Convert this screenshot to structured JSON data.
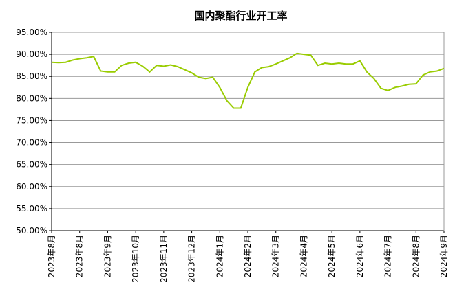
{
  "chart_data": {
    "type": "line",
    "title": "国内聚酯行业开工率",
    "categories": [
      "2023年8月",
      null,
      null,
      null,
      "2023年8月",
      null,
      null,
      null,
      "2023年9月",
      null,
      null,
      null,
      "2023年10月",
      null,
      null,
      null,
      "2023年11月",
      null,
      null,
      null,
      "2023年12月",
      null,
      null,
      null,
      "2024年1月",
      null,
      null,
      null,
      "2024年2月",
      null,
      null,
      null,
      "2024年3月",
      null,
      null,
      null,
      "2024年4月",
      null,
      null,
      null,
      "2024年5月",
      null,
      null,
      null,
      "2024年6月",
      null,
      null,
      null,
      "2024年7月",
      null,
      null,
      null,
      "2024年8月",
      null,
      null,
      null,
      "2024年9月"
    ],
    "series": [
      {
        "color": "#99cc00",
        "values": [
          88.2,
          88.1,
          88.2,
          88.7,
          89.0,
          89.2,
          89.5,
          86.2,
          86.0,
          86.0,
          87.5,
          88.0,
          88.2,
          87.3,
          86.0,
          87.5,
          87.3,
          87.6,
          87.2,
          86.5,
          85.8,
          84.8,
          84.5,
          84.8,
          82.5,
          79.5,
          77.8,
          77.8,
          82.5,
          86.0,
          87.0,
          87.2,
          87.8,
          88.5,
          89.2,
          90.2,
          90.0,
          89.8,
          87.5,
          88.0,
          87.8,
          88.0,
          87.8,
          87.8,
          88.5,
          86.0,
          84.5,
          82.3,
          81.8,
          82.5,
          82.8,
          83.2,
          83.3,
          85.3,
          86.0,
          86.2,
          86.8
        ]
      }
    ],
    "ylim": [
      50,
      95
    ],
    "yticks": [
      {
        "value": 50,
        "label": "50.00%"
      },
      {
        "value": 55,
        "label": "55.00%"
      },
      {
        "value": 60,
        "label": "60.00%"
      },
      {
        "value": 65,
        "label": "65.00%"
      },
      {
        "value": 70,
        "label": "70.00%"
      },
      {
        "value": 75,
        "label": "75.00%"
      },
      {
        "value": 80,
        "label": "80.00%"
      },
      {
        "value": 85,
        "label": "85.00%"
      },
      {
        "value": 90,
        "label": "90.00%"
      },
      {
        "value": 95,
        "label": "95.00%"
      }
    ],
    "grid": true
  }
}
